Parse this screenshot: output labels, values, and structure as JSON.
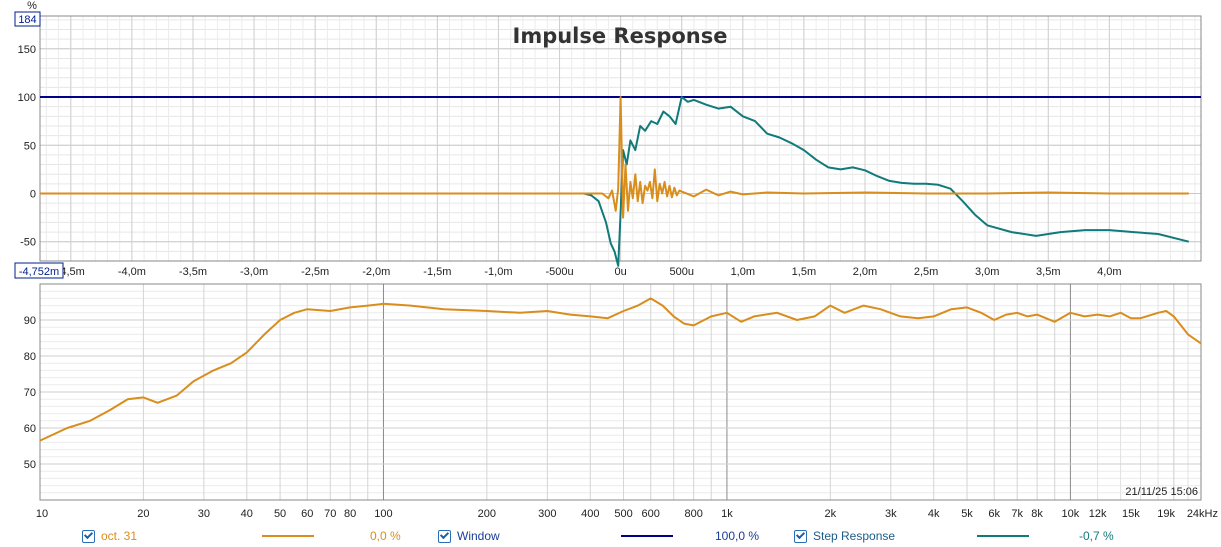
{
  "chart_data": [
    {
      "type": "line",
      "title": "Impulse Response",
      "y_unit": "%",
      "x_unit": "s",
      "xlim": [
        -0.004752,
        0.00475
      ],
      "ylim": [
        -70,
        184
      ],
      "top_value_box": "184",
      "left_value_box": "-4,752m",
      "x_ticks": [
        {
          "v": -0.0045,
          "label": "-4,5m"
        },
        {
          "v": -0.004,
          "label": "-4,0m"
        },
        {
          "v": -0.0035,
          "label": "-3,5m"
        },
        {
          "v": -0.003,
          "label": "-3,0m"
        },
        {
          "v": -0.0025,
          "label": "-2,5m"
        },
        {
          "v": -0.002,
          "label": "-2,0m"
        },
        {
          "v": -0.0015,
          "label": "-1,5m"
        },
        {
          "v": -0.001,
          "label": "-1,0m"
        },
        {
          "v": -0.0005,
          "label": "-500u"
        },
        {
          "v": 0,
          "label": "0u"
        },
        {
          "v": 0.0005,
          "label": "500u"
        },
        {
          "v": 0.001,
          "label": "1,0m"
        },
        {
          "v": 0.0015,
          "label": "1,5m"
        },
        {
          "v": 0.002,
          "label": "2,0m"
        },
        {
          "v": 0.0025,
          "label": "2,5m"
        },
        {
          "v": 0.003,
          "label": "3,0m"
        },
        {
          "v": 0.0035,
          "label": "3,5m"
        },
        {
          "v": 0.004,
          "label": "4,0m"
        }
      ],
      "y_ticks": [
        {
          "v": 150,
          "label": "150"
        },
        {
          "v": 100,
          "label": "100"
        },
        {
          "v": 50,
          "label": "50"
        },
        {
          "v": 0,
          "label": "0"
        },
        {
          "v": -50,
          "label": "-50"
        }
      ],
      "series": [
        {
          "name": "Window",
          "color": "#00008b",
          "x": [
            -0.004752,
            0.00475
          ],
          "y": [
            100,
            100
          ]
        },
        {
          "name": "Step Response",
          "color": "#117a7a",
          "x": [
            -0.004752,
            -0.0003,
            -0.00024,
            -0.00018,
            -0.00012,
            -8e-05,
            -5e-05,
            -2e-05,
            0,
            2e-05,
            5e-05,
            8e-05,
            0.00012,
            0.00016,
            0.0002,
            0.00025,
            0.0003,
            0.00035,
            0.0004,
            0.00045,
            0.0005,
            0.00055,
            0.0006,
            0.0007,
            0.0008,
            0.0009,
            0.001,
            0.0011,
            0.0012,
            0.0013,
            0.0014,
            0.0015,
            0.0016,
            0.0017,
            0.0018,
            0.0019,
            0.002,
            0.0021,
            0.0022,
            0.0023,
            0.0024,
            0.0025,
            0.0026,
            0.0027,
            0.0028,
            0.0029,
            0.003,
            0.0032,
            0.0034,
            0.0036,
            0.0038,
            0.004,
            0.0042,
            0.0044,
            0.00465
          ],
          "y": [
            0,
            0,
            -2,
            -8,
            -30,
            -52,
            -60,
            -75,
            -20,
            45,
            30,
            55,
            45,
            70,
            65,
            75,
            72,
            85,
            80,
            72,
            100,
            95,
            97,
            92,
            88,
            90,
            80,
            75,
            62,
            58,
            52,
            45,
            35,
            27,
            25,
            27,
            24,
            18,
            13,
            11,
            10,
            10,
            9,
            5,
            -8,
            -22,
            -33,
            -40,
            -44,
            -40,
            -38,
            -38,
            -40,
            -42,
            -50
          ]
        },
        {
          "name": "oct. 31",
          "color": "#d98d1c",
          "x": [
            -0.004752,
            -0.00015,
            -0.0001,
            -7e-05,
            -4e-05,
            -2e-05,
            0,
            2e-05,
            4e-05,
            6e-05,
            8e-05,
            0.0001,
            0.00012,
            0.00014,
            0.00016,
            0.00018,
            0.0002,
            0.00022,
            0.00024,
            0.00026,
            0.00028,
            0.0003,
            0.00032,
            0.00034,
            0.00036,
            0.00038,
            0.0004,
            0.00042,
            0.00044,
            0.00046,
            0.00048,
            0.0005,
            0.0006,
            0.0007,
            0.0008,
            0.0009,
            0.001,
            0.0012,
            0.0015,
            0.002,
            0.0025,
            0.003,
            0.0035,
            0.004,
            0.00465
          ],
          "y": [
            0,
            0,
            -5,
            3,
            -18,
            5,
            100,
            -25,
            30,
            -18,
            12,
            -5,
            20,
            -8,
            12,
            -10,
            8,
            3,
            12,
            -5,
            25,
            -8,
            10,
            0,
            12,
            -3,
            8,
            -4,
            6,
            -2,
            3,
            2,
            -3,
            4,
            -2,
            2,
            -1,
            1,
            0,
            1,
            0,
            0,
            1,
            0,
            0
          ]
        }
      ]
    },
    {
      "type": "line",
      "x_scale": "log",
      "xlim": [
        10,
        24000
      ],
      "ylim": [
        40,
        100
      ],
      "timestamp": "21/11/25 15:06",
      "x_ticks": [
        {
          "v": 10,
          "label": "10"
        },
        {
          "v": 20,
          "label": "20"
        },
        {
          "v": 30,
          "label": "30"
        },
        {
          "v": 40,
          "label": "40"
        },
        {
          "v": 50,
          "label": "50"
        },
        {
          "v": 60,
          "label": "60"
        },
        {
          "v": 70,
          "label": "70"
        },
        {
          "v": 80,
          "label": "80"
        },
        {
          "v": 100,
          "label": "100"
        },
        {
          "v": 200,
          "label": "200"
        },
        {
          "v": 300,
          "label": "300"
        },
        {
          "v": 400,
          "label": "400"
        },
        {
          "v": 500,
          "label": "500"
        },
        {
          "v": 600,
          "label": "600"
        },
        {
          "v": 800,
          "label": "800"
        },
        {
          "v": 1000,
          "label": "1k"
        },
        {
          "v": 2000,
          "label": "2k"
        },
        {
          "v": 3000,
          "label": "3k"
        },
        {
          "v": 4000,
          "label": "4k"
        },
        {
          "v": 5000,
          "label": "5k"
        },
        {
          "v": 6000,
          "label": "6k"
        },
        {
          "v": 7000,
          "label": "7k"
        },
        {
          "v": 8000,
          "label": "8k"
        },
        {
          "v": 10000,
          "label": "10k"
        },
        {
          "v": 12000,
          "label": "12k"
        },
        {
          "v": 15000,
          "label": "15k"
        },
        {
          "v": 19000,
          "label": "19k"
        },
        {
          "v": 24000,
          "label": "24kHz"
        }
      ],
      "y_ticks": [
        {
          "v": 90,
          "label": "90"
        },
        {
          "v": 80,
          "label": "80"
        },
        {
          "v": 70,
          "label": "70"
        },
        {
          "v": 60,
          "label": "60"
        },
        {
          "v": 50,
          "label": "50"
        }
      ],
      "series": [
        {
          "name": "oct. 31",
          "color": "#d98d1c",
          "x": [
            10,
            12,
            14,
            16,
            18,
            20,
            22,
            25,
            28,
            32,
            36,
            40,
            45,
            50,
            55,
            60,
            70,
            80,
            90,
            100,
            120,
            150,
            200,
            250,
            300,
            350,
            400,
            450,
            500,
            550,
            600,
            650,
            700,
            750,
            800,
            900,
            1000,
            1100,
            1200,
            1400,
            1600,
            1800,
            2000,
            2200,
            2500,
            2800,
            3200,
            3600,
            4000,
            4500,
            5000,
            5500,
            6000,
            6500,
            7000,
            7500,
            8000,
            9000,
            10000,
            11000,
            12000,
            13000,
            14000,
            15000,
            16000,
            18000,
            19000,
            20000,
            22000,
            24000
          ],
          "y": [
            56.5,
            60,
            62,
            65,
            68,
            68.5,
            67,
            69,
            73,
            76,
            78,
            81,
            86,
            90,
            92,
            93,
            92.5,
            93.5,
            94,
            94.5,
            94,
            93,
            92.5,
            92,
            92.5,
            91.5,
            91,
            90.5,
            92.5,
            94,
            96,
            94,
            91,
            89,
            88.5,
            91,
            92,
            89.5,
            91,
            92,
            90,
            91,
            94,
            92,
            94,
            93,
            91,
            90.5,
            91,
            93,
            93.5,
            92,
            90,
            91.5,
            92,
            91,
            91.5,
            89.5,
            92,
            91,
            91.5,
            91,
            92,
            90.5,
            90.5,
            92,
            92.5,
            91,
            86,
            83.5
          ]
        }
      ]
    }
  ],
  "legend": [
    {
      "label": "oct. 31",
      "value": "0,0 %",
      "color": "#d98d1c"
    },
    {
      "label": "Window",
      "value": "100,0 %",
      "color": "#00008b"
    },
    {
      "label": "Step Response",
      "value": "-0,7 %",
      "color": "#117a7a"
    }
  ]
}
